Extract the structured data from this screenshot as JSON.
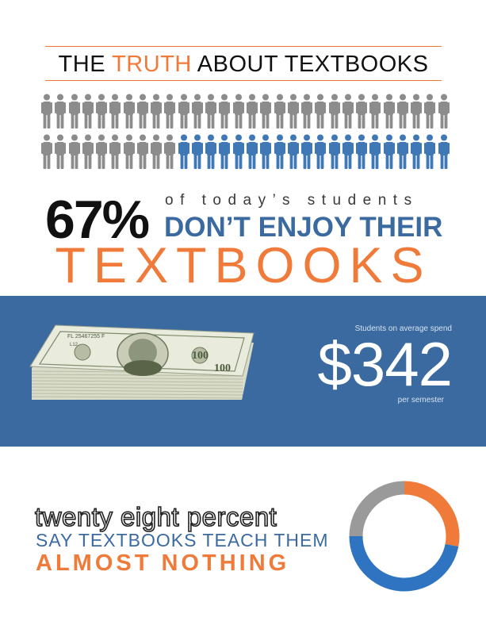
{
  "header": {
    "title_part1": "THE ",
    "title_accent": "TRUTH",
    "title_part2": " ABOUT TEXTBOOKS"
  },
  "people_stat": {
    "total": 60,
    "highlighted": 20,
    "colors": {
      "gray": "#8c8c8c",
      "blue": "#3f78b5"
    }
  },
  "headline": {
    "percent": "67%",
    "small_line": "of today’s students",
    "bold_line": "DON’T ENJOY THEIR",
    "big_word": "TEXTBOOKS"
  },
  "money_band": {
    "label": "Students on average spend",
    "amount": "$342",
    "suffix": "per semester",
    "bill_denomination": "100",
    "bill_serial": "FL 25467255 F",
    "bill_code": "L12",
    "band_color": "#3a6aa0"
  },
  "bottom": {
    "line1": "twenty eight percent",
    "line2": "SAY TEXTBOOKS TEACH THEM",
    "line3": "ALMOST NOTHING",
    "donut": {
      "segments": [
        {
          "label": "orange",
          "percent": 28,
          "color": "#f07a3a"
        },
        {
          "label": "blue",
          "percent": 47,
          "color": "#2f74c0"
        },
        {
          "label": "gray",
          "percent": 25,
          "color": "#9a9a9a"
        }
      ]
    }
  },
  "colors": {
    "accent_orange": "#f07a3a",
    "accent_blue": "#3a6aa0",
    "text_dark": "#111111"
  }
}
